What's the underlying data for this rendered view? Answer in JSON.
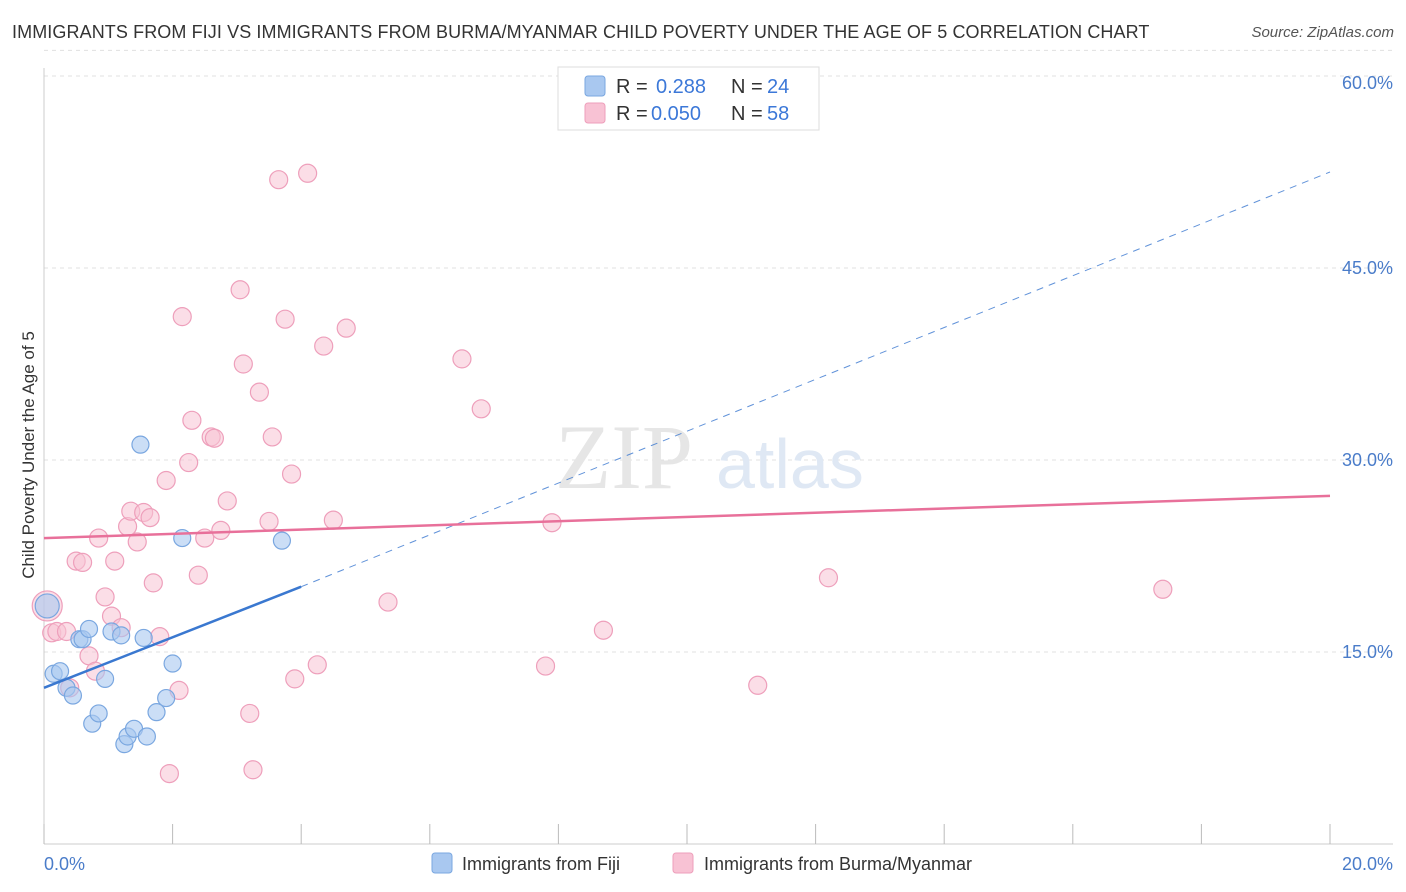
{
  "title": "IMMIGRANTS FROM FIJI VS IMMIGRANTS FROM BURMA/MYANMAR CHILD POVERTY UNDER THE AGE OF 5 CORRELATION CHART",
  "source": "Source: ZipAtlas.com",
  "watermark": {
    "zip": "ZIP",
    "atlas": "atlas"
  },
  "legend_box": {
    "fiji": {
      "r_label": "R =",
      "r_value": "0.288",
      "n_label": "N =",
      "n_value": "24"
    },
    "burma": {
      "r_label": "R =",
      "r_value": "0.050",
      "n_label": "N =",
      "n_value": "58"
    }
  },
  "bottom_legend": {
    "fiji": "Immigrants from Fiji",
    "burma": "Immigrants from Burma/Myanmar"
  },
  "colors": {
    "fiji_fill": "#a9c8f0",
    "fiji_stroke": "#7aa7e0",
    "fiji_line": "#3a78d0",
    "burma_fill": "#f8c2d4",
    "burma_stroke": "#ee9fbb",
    "burma_line": "#e8709a"
  },
  "chart_data": {
    "type": "scatter",
    "title": "IMMIGRANTS FROM FIJI VS IMMIGRANTS FROM BURMA/MYANMAR CHILD POVERTY UNDER THE AGE OF 5 CORRELATION CHART",
    "xlabel": "",
    "ylabel": "Child Poverty Under the Age of 5",
    "xlim": [
      0,
      20
    ],
    "ylim": [
      0,
      63
    ],
    "x_tick_labels": {
      "left": "0.0%",
      "right": "20.0%"
    },
    "y_ticks": [
      15,
      30,
      45,
      60
    ],
    "y_tick_labels": [
      "15.0%",
      "30.0%",
      "45.0%",
      "60.0%"
    ],
    "series": [
      {
        "name": "Immigrants from Fiji",
        "R": 0.288,
        "N": 24,
        "trend": {
          "x0": 0,
          "y0": 12.2,
          "x1": 4.0,
          "y1": 20.1,
          "dash_x1": 20.0,
          "dash_y1": 52.5
        },
        "points": [
          [
            0.05,
            18.6
          ],
          [
            0.15,
            13.3
          ],
          [
            0.25,
            13.5
          ],
          [
            0.35,
            12.2
          ],
          [
            0.45,
            11.6
          ],
          [
            0.55,
            16.0
          ],
          [
            0.6,
            16.0
          ],
          [
            0.7,
            16.8
          ],
          [
            0.75,
            9.4
          ],
          [
            0.85,
            10.2
          ],
          [
            0.95,
            12.9
          ],
          [
            1.05,
            16.6
          ],
          [
            1.2,
            16.3
          ],
          [
            1.25,
            7.8
          ],
          [
            1.3,
            8.4
          ],
          [
            1.4,
            9.0
          ],
          [
            1.5,
            31.2
          ],
          [
            1.55,
            16.1
          ],
          [
            1.6,
            8.4
          ],
          [
            1.75,
            10.3
          ],
          [
            1.9,
            11.4
          ],
          [
            2.0,
            14.1
          ],
          [
            2.15,
            23.9
          ],
          [
            3.7,
            23.7
          ]
        ]
      },
      {
        "name": "Immigrants from Burma/Myanmar",
        "R": 0.05,
        "N": 58,
        "trend": {
          "x0": 0,
          "y0": 23.9,
          "x1": 20.0,
          "y1": 27.2
        },
        "points": [
          [
            0.05,
            18.6
          ],
          [
            0.12,
            16.5
          ],
          [
            0.2,
            16.6
          ],
          [
            0.35,
            16.6
          ],
          [
            0.4,
            12.2
          ],
          [
            0.5,
            22.1
          ],
          [
            0.6,
            22.0
          ],
          [
            0.7,
            14.7
          ],
          [
            0.8,
            13.5
          ],
          [
            0.85,
            23.9
          ],
          [
            0.95,
            19.3
          ],
          [
            1.05,
            17.8
          ],
          [
            1.1,
            22.1
          ],
          [
            1.2,
            16.9
          ],
          [
            1.3,
            24.8
          ],
          [
            1.35,
            26.0
          ],
          [
            1.45,
            23.6
          ],
          [
            1.55,
            25.9
          ],
          [
            1.65,
            25.5
          ],
          [
            1.7,
            20.4
          ],
          [
            1.8,
            16.2
          ],
          [
            1.9,
            28.4
          ],
          [
            1.95,
            5.5
          ],
          [
            2.1,
            12.0
          ],
          [
            2.15,
            41.2
          ],
          [
            2.25,
            29.8
          ],
          [
            2.3,
            33.1
          ],
          [
            2.4,
            21.0
          ],
          [
            2.5,
            23.9
          ],
          [
            2.6,
            31.8
          ],
          [
            2.65,
            31.7
          ],
          [
            2.75,
            24.5
          ],
          [
            2.85,
            26.8
          ],
          [
            3.05,
            43.3
          ],
          [
            3.1,
            37.5
          ],
          [
            3.2,
            10.2
          ],
          [
            3.25,
            5.8
          ],
          [
            3.35,
            35.3
          ],
          [
            3.5,
            25.2
          ],
          [
            3.55,
            31.8
          ],
          [
            3.65,
            51.9
          ],
          [
            3.75,
            41.0
          ],
          [
            3.85,
            28.9
          ],
          [
            3.9,
            12.9
          ],
          [
            4.1,
            52.4
          ],
          [
            4.25,
            14.0
          ],
          [
            4.35,
            38.9
          ],
          [
            4.5,
            25.3
          ],
          [
            4.7,
            40.3
          ],
          [
            5.35,
            18.9
          ],
          [
            6.5,
            37.9
          ],
          [
            6.8,
            34.0
          ],
          [
            7.8,
            13.9
          ],
          [
            7.9,
            25.1
          ],
          [
            8.7,
            16.7
          ],
          [
            11.1,
            12.4
          ],
          [
            12.2,
            20.8
          ],
          [
            17.4,
            19.9
          ]
        ]
      }
    ]
  }
}
